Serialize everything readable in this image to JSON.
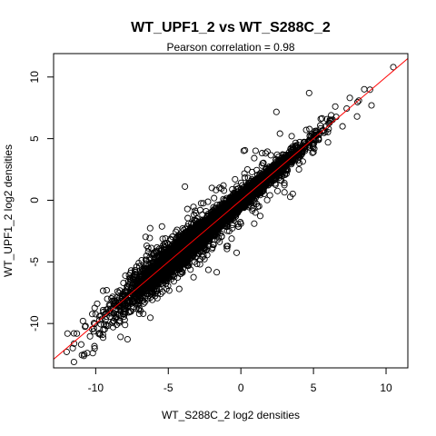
{
  "chart_data": {
    "type": "scatter",
    "title": "WT_UPF1_2 vs WT_S288C_2",
    "subtitle": "Pearson correlation =  0.98",
    "xlabel": "WT_S288C_2 log2 densities",
    "ylabel": "WT_UPF1_2 log2 densities",
    "xlim": [
      -12.9,
      11.5
    ],
    "ylim": [
      -13.6,
      11.9
    ],
    "xticks": [
      -10,
      -5,
      0,
      5,
      10
    ],
    "yticks": [
      -10,
      -5,
      0,
      5,
      10
    ],
    "xtick_labels": [
      "-10",
      "-5",
      "0",
      "5",
      "10"
    ],
    "ytick_labels": [
      "-10",
      "-5",
      "0",
      "5",
      "10"
    ],
    "grid": false,
    "marker": "open-circle",
    "point_color": "#000000",
    "fit_line": {
      "color": "#ff0000",
      "slope": 1.0,
      "intercept": 0.0
    },
    "approx_points": 6000,
    "trend": {
      "slope": 1.0,
      "intercept": 0.0,
      "x_range": [
        -12.5,
        10.8
      ]
    },
    "sample_points": [
      [
        -12.0,
        -12.3
      ],
      [
        -11.5,
        -10.8
      ],
      [
        -11.0,
        -11.7
      ],
      [
        -10.7,
        -10.2
      ],
      [
        -10.2,
        -12.4
      ],
      [
        -9.9,
        -8.4
      ],
      [
        -9.5,
        -10.9
      ],
      [
        -9.2,
        -8.0
      ],
      [
        -8.8,
        -10.3
      ],
      [
        -8.5,
        -7.4
      ],
      [
        -8.0,
        -9.7
      ],
      [
        -7.6,
        -5.9
      ],
      [
        -7.2,
        -8.8
      ],
      [
        -6.8,
        -5.6
      ],
      [
        -6.4,
        -8.0
      ],
      [
        -6.0,
        -4.3
      ],
      [
        -5.6,
        -7.2
      ],
      [
        -5.2,
        -3.1
      ],
      [
        -4.8,
        -6.4
      ],
      [
        -4.4,
        -2.4
      ],
      [
        -4.0,
        -5.6
      ],
      [
        -3.6,
        -1.9
      ],
      [
        -3.2,
        -5.0
      ],
      [
        -2.8,
        -0.8
      ],
      [
        -2.4,
        -4.0
      ],
      [
        -2.0,
        1.0
      ],
      [
        -1.6,
        -3.2
      ],
      [
        -1.2,
        1.2
      ],
      [
        -0.8,
        -2.5
      ],
      [
        -0.4,
        1.7
      ],
      [
        0.0,
        -1.9
      ],
      [
        0.5,
        1.8
      ],
      [
        1.0,
        -1.0
      ],
      [
        1.5,
        3.0
      ],
      [
        2.0,
        0.4
      ],
      [
        2.5,
        3.7
      ],
      [
        3.0,
        1.4
      ],
      [
        3.5,
        5.2
      ],
      [
        4.0,
        2.5
      ],
      [
        4.5,
        5.7
      ],
      [
        5.0,
        3.9
      ],
      [
        5.5,
        6.6
      ],
      [
        6.0,
        4.7
      ],
      [
        6.5,
        7.6
      ],
      [
        7.0,
        6.0
      ],
      [
        7.5,
        8.3
      ],
      [
        8.0,
        6.8
      ],
      [
        8.5,
        9.0
      ],
      [
        9.0,
        7.7
      ],
      [
        10.5,
        10.8
      ]
    ]
  }
}
